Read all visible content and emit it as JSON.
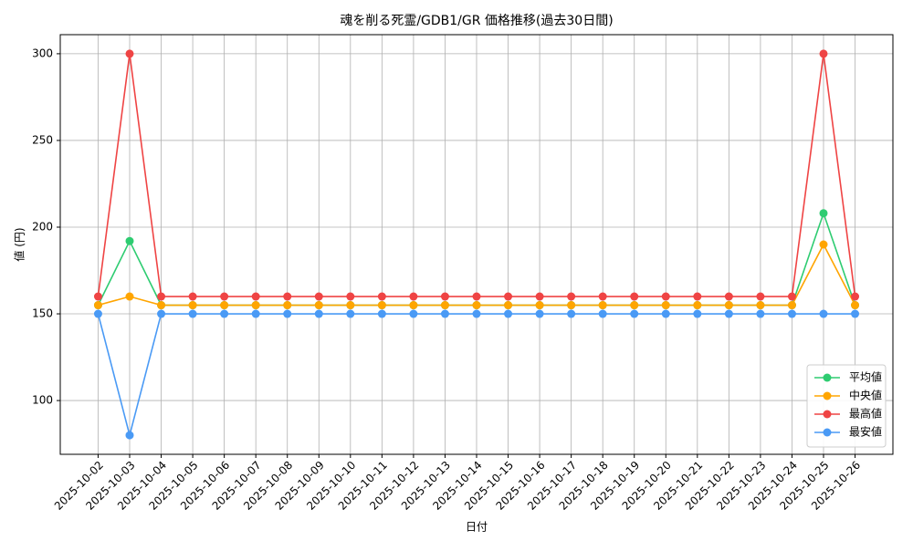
{
  "chart_data": {
    "type": "line",
    "title": "魂を削る死霊/GDB1/GR 価格推移(過去30日間)",
    "xlabel": "日付",
    "ylabel": "値 (円)",
    "categories": [
      "2025-10-02",
      "2025-10-03",
      "2025-10-04",
      "2025-10-05",
      "2025-10-06",
      "2025-10-07",
      "2025-10-08",
      "2025-10-09",
      "2025-10-10",
      "2025-10-11",
      "2025-10-12",
      "2025-10-13",
      "2025-10-14",
      "2025-10-15",
      "2025-10-16",
      "2025-10-17",
      "2025-10-18",
      "2025-10-19",
      "2025-10-20",
      "2025-10-21",
      "2025-10-22",
      "2025-10-23",
      "2025-10-24",
      "2025-10-25",
      "2025-10-26"
    ],
    "series": [
      {
        "name": "平均値",
        "color": "#2ecc71",
        "values": [
          155,
          192,
          155,
          155,
          155,
          155,
          155,
          155,
          155,
          155,
          155,
          155,
          155,
          155,
          155,
          155,
          155,
          155,
          155,
          155,
          155,
          155,
          155,
          208,
          155
        ]
      },
      {
        "name": "中央値",
        "color": "#ffa500",
        "values": [
          155,
          160,
          155,
          155,
          155,
          155,
          155,
          155,
          155,
          155,
          155,
          155,
          155,
          155,
          155,
          155,
          155,
          155,
          155,
          155,
          155,
          155,
          155,
          190,
          155
        ]
      },
      {
        "name": "最高値",
        "color": "#ef4444",
        "values": [
          160,
          300,
          160,
          160,
          160,
          160,
          160,
          160,
          160,
          160,
          160,
          160,
          160,
          160,
          160,
          160,
          160,
          160,
          160,
          160,
          160,
          160,
          160,
          300,
          160
        ]
      },
      {
        "name": "最安値",
        "color": "#4a9af5",
        "values": [
          150,
          80,
          150,
          150,
          150,
          150,
          150,
          150,
          150,
          150,
          150,
          150,
          150,
          150,
          150,
          150,
          150,
          150,
          150,
          150,
          150,
          150,
          150,
          150,
          150
        ]
      }
    ],
    "ylim": [
      69,
      311
    ],
    "yticks": [
      100,
      150,
      200,
      250,
      300
    ],
    "grid": true,
    "legend": "lower right"
  }
}
